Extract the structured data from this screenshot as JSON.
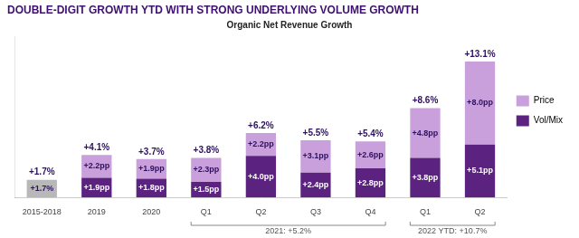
{
  "chart_data": {
    "type": "bar",
    "title": "DOUBLE-DIGIT GROWTH YTD WITH STRONG UNDERLYING VOLUME GROWTH",
    "subtitle": "Organic Net Revenue Growth",
    "categories": [
      "2015-2018",
      "2019",
      "2020",
      "Q1",
      "Q2",
      "Q3",
      "Q4",
      "Q1",
      "Q2"
    ],
    "stacked": true,
    "series": [
      {
        "name": "Vol/Mix",
        "color": "#5b2280",
        "colors": [
          "#b8b8b8",
          "#5b2280",
          "#5b2280",
          "#5b2280",
          "#5b2280",
          "#5b2280",
          "#5b2280",
          "#5b2280",
          "#5b2280"
        ],
        "values": [
          1.7,
          1.9,
          1.8,
          1.5,
          4.0,
          2.4,
          2.8,
          3.8,
          5.1
        ],
        "value_labels": [
          "+1.7%",
          "+1.9pp",
          "+1.8pp",
          "+1.5pp",
          "+4.0pp",
          "+2.4pp",
          "+2.8pp",
          "+3.8pp",
          "+5.1pp"
        ]
      },
      {
        "name": "Price",
        "color": "#c9a0dc",
        "values": [
          0.0,
          2.2,
          1.9,
          2.3,
          2.2,
          3.1,
          2.6,
          4.8,
          8.0
        ],
        "value_labels": [
          null,
          "+2.2pp",
          "+1.9pp",
          "+2.3pp",
          "+2.2pp",
          "+3.1pp",
          "+2.6pp",
          "+4.8pp",
          "+8.0pp"
        ]
      }
    ],
    "totals": [
      1.7,
      4.1,
      3.7,
      3.8,
      6.2,
      5.5,
      5.4,
      8.6,
      13.1
    ],
    "total_labels": [
      "+1.7%",
      "+4.1%",
      "+3.7%",
      "+3.8%",
      "+6.2%",
      "+5.5%",
      "+5.4%",
      "+8.6%",
      "+13.1%"
    ],
    "groups": [
      {
        "label": "2021: +5.2%",
        "first": 3,
        "last": 6
      },
      {
        "label": "2022 YTD: +10.7%",
        "first": 7,
        "last": 8
      }
    ],
    "ylim": [
      0,
      15.5
    ],
    "yticks": [],
    "grid": false,
    "legend": "right",
    "data_labels": true,
    "tick_labels": "x"
  }
}
